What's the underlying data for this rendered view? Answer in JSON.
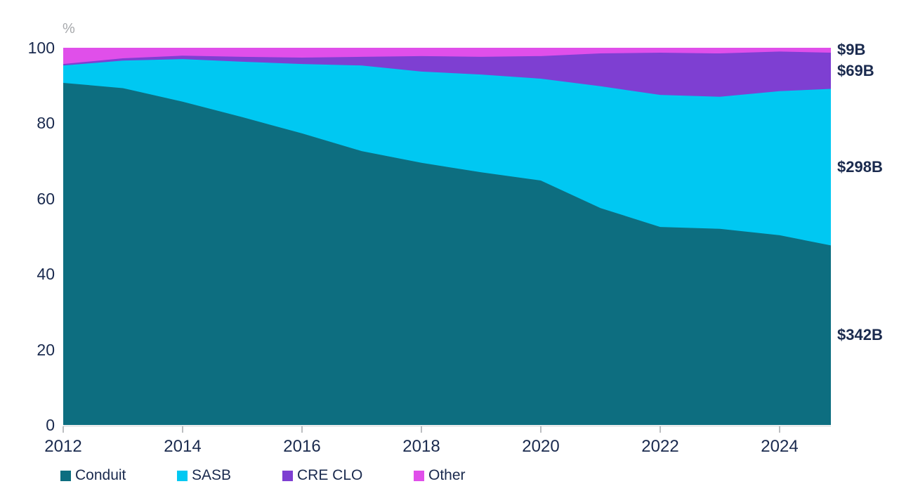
{
  "chart_meta": {
    "unit_label": "%",
    "colors": {
      "text_navy": "#1A2A4E",
      "axis_gray": "#A6A8AB",
      "axis_line_gray": "#D0D2D4"
    }
  },
  "chart_data": {
    "type": "area",
    "stacked": true,
    "title": "",
    "xlabel": "",
    "ylabel": "%",
    "ylim": [
      0,
      100
    ],
    "grid": false,
    "legend_position": "bottom",
    "x": [
      2012,
      2013,
      2014,
      2015,
      2016,
      2017,
      2018,
      2019,
      2020,
      2021,
      2022,
      2023,
      2024,
      2024.9
    ],
    "x_axis_ticks": [
      2012,
      2014,
      2016,
      2018,
      2020,
      2022,
      2024
    ],
    "y_axis_ticks": [
      100,
      80,
      60,
      40,
      20,
      0
    ],
    "series": [
      {
        "name": "Conduit",
        "color": "#0D6E80",
        "values": [
          90.7,
          89.3,
          85.7,
          81.6,
          77.3,
          72.6,
          69.5,
          67.0,
          64.8,
          57.5,
          52.5,
          52.0,
          50.3,
          47.6
        ]
      },
      {
        "name": "SASB",
        "color": "#00C8F2",
        "values": [
          4.6,
          7.3,
          11.3,
          14.7,
          18.4,
          22.7,
          24.2,
          25.9,
          27.0,
          32.3,
          35.0,
          35.0,
          38.2,
          41.5
        ]
      },
      {
        "name": "CRE CLO",
        "color": "#7E3FD2",
        "values": [
          0.4,
          0.6,
          0.9,
          1.3,
          1.7,
          2.3,
          4.1,
          4.7,
          6.0,
          8.7,
          11.2,
          11.5,
          10.5,
          9.6
        ]
      },
      {
        "name": "Other",
        "color": "#E04FEA",
        "values": [
          4.3,
          2.8,
          2.1,
          2.4,
          2.6,
          2.4,
          2.2,
          2.4,
          2.2,
          1.5,
          1.3,
          1.5,
          1.0,
          1.3
        ]
      }
    ],
    "end_labels": [
      {
        "series": "Other",
        "text": "$9B"
      },
      {
        "series": "CRE CLO",
        "text": "$69B"
      },
      {
        "series": "SASB",
        "text": "$298B"
      },
      {
        "series": "Conduit",
        "text": "$342B"
      }
    ]
  },
  "legend": {
    "items": [
      {
        "label": "Conduit",
        "color": "#0D6E80"
      },
      {
        "label": "SASB",
        "color": "#00C8F2"
      },
      {
        "label": "CRE CLO",
        "color": "#7E3FD2"
      },
      {
        "label": "Other",
        "color": "#E04FEA"
      }
    ]
  }
}
